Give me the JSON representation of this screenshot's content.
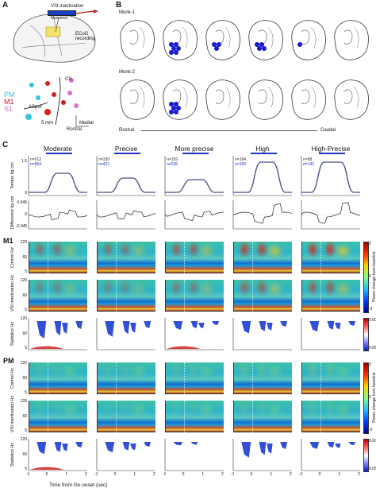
{
  "panels": {
    "a": "A",
    "b": "B",
    "c": "C"
  },
  "panel_a": {
    "vst_inactivation": "VSt inactivation",
    "muscimol": "Muscimol",
    "ecog_recording": "ECoG\nrecording",
    "legend": [
      {
        "label": "PM",
        "color": "#35c3e0"
      },
      {
        "label": "M1",
        "color": "#d42020"
      },
      {
        "label": "S1",
        "color": "#e070c8"
      }
    ],
    "cs": "CS",
    "aspur": "ASpur",
    "scale": "5 mm",
    "medial": "Medial",
    "rostral": "Rostral"
  },
  "panel_b": {
    "monk1": "Monk-1",
    "monk2": "Monk-2",
    "rostral": "Rostral",
    "caudal": "Caudal"
  },
  "conditions": [
    "Moderate",
    "Precise",
    "More precise",
    "High",
    "High-Precise"
  ],
  "n_values": [
    {
      "n1": "n=612",
      "n2": "n=854"
    },
    {
      "n1": "n=330",
      "n2": "n=422"
    },
    {
      "n1": "n=159",
      "n2": "n=226"
    },
    {
      "n1": "n=184",
      "n2": "n=330"
    },
    {
      "n1": "n=88",
      "n2": "n=142"
    }
  ],
  "row_labels": {
    "torque": "Torque",
    "torque_unit": "kg·cm",
    "difference": "Difference",
    "difference_unit": "kg·cm",
    "control": "Control",
    "hz": "Hz",
    "vst_inactivation": "VSt inactivation",
    "statistics": "Statistics"
  },
  "torque_ticks": [
    "1.5",
    "0"
  ],
  "diff_ticks": [
    "0.045",
    "0",
    "-0.045"
  ],
  "hz_ticks": [
    "120",
    "60",
    "5"
  ],
  "sections": {
    "m1": "M1",
    "pm": "PM"
  },
  "colorbar": {
    "power_max": "3",
    "power_mid": "0",
    "power_min": "-3",
    "power_label": "Power change from baseline",
    "p_max": "0.00*",
    "p_min": "0.05",
    "p_label": "P value"
  },
  "x_ticks": [
    "-1",
    "0",
    "1",
    "2"
  ],
  "x_axis_label": "Time from Go onset (sec)",
  "colors": {
    "torque_line": "#2030c0",
    "task_bar": "#2030c0",
    "hm_base": "#1ea0d0",
    "stat_blue": "#1030d0",
    "stat_red": "#d02020"
  }
}
